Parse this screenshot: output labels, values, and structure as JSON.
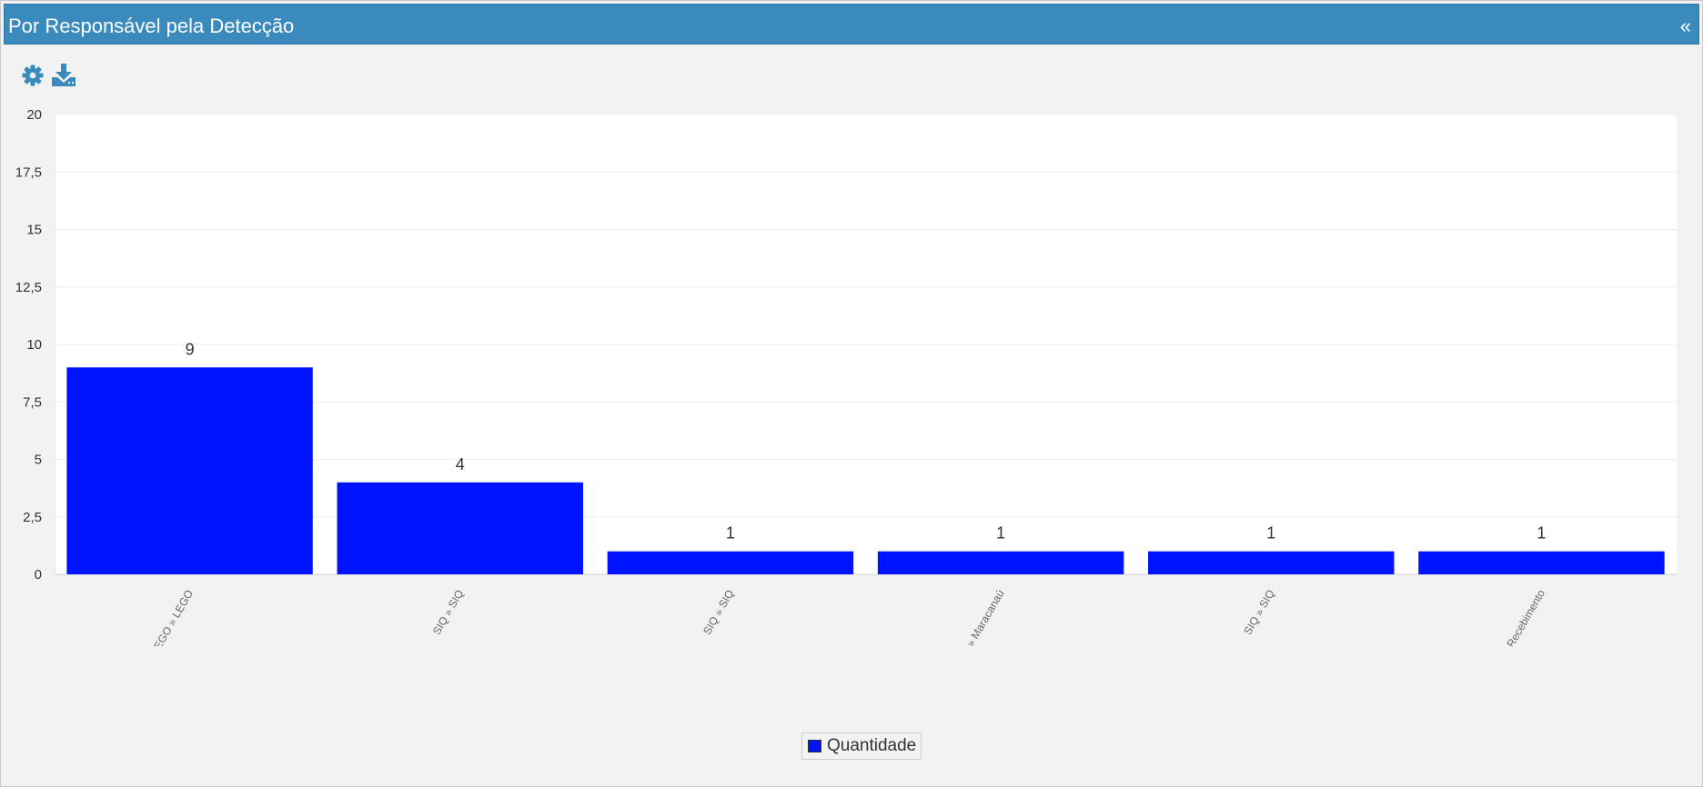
{
  "header": {
    "title": "Por Responsável pela Detecção",
    "collapse_glyph": "«"
  },
  "toolbar": {
    "settings_icon": "gear-icon",
    "download_icon": "download-icon",
    "icon_color": "#3a8abd"
  },
  "colors": {
    "header_bg": "#3a8abd",
    "bar": "#0013ff"
  },
  "chart_data": {
    "type": "bar",
    "title": "",
    "xlabel": "",
    "ylabel": "",
    "categories": [
      "LEGO » LEGO",
      "SIQ » SIQ",
      "SIQ » SIQ",
      "Maracanaú » Maracanaú",
      "SIQ » SIQ",
      "Recebimento » Recebimento"
    ],
    "series": [
      {
        "name": "Quantidade",
        "values": [
          9,
          4,
          1,
          1,
          1,
          1
        ],
        "color": "#0013ff"
      }
    ],
    "ylim": [
      0,
      20
    ],
    "yticks": [
      "0",
      "2,5",
      "5",
      "7,5",
      "10",
      "12,5",
      "15",
      "17,5",
      "20"
    ],
    "grid": true,
    "legend_position": "bottom-center",
    "data_labels": true
  },
  "legend": {
    "label": "Quantidade"
  }
}
